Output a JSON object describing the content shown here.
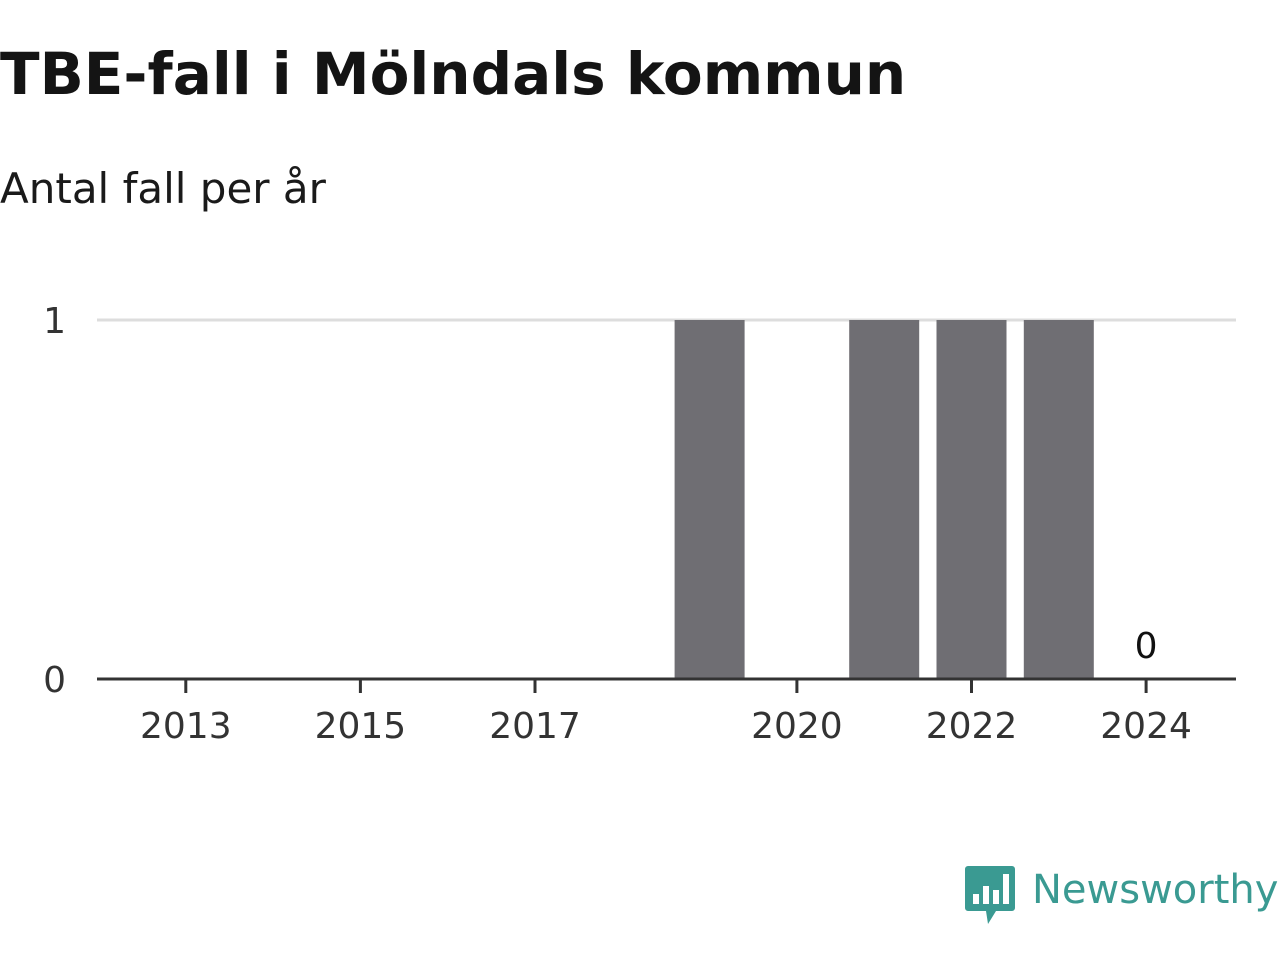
{
  "title": "TBE-fall i Mölndals kommun",
  "subtitle": "Antal fall per år",
  "brand": {
    "name": "Newsworthy",
    "icon": "newsworthy-logo-icon",
    "color": "#3a9a92"
  },
  "colors": {
    "bar": "#6f6e73",
    "gridline": "#dddddd",
    "axis": "#333333"
  },
  "chart_data": {
    "type": "bar",
    "categories": [
      "2012",
      "2013",
      "2014",
      "2015",
      "2016",
      "2017",
      "2018",
      "2019",
      "2020",
      "2021",
      "2022",
      "2023",
      "2024",
      "2025"
    ],
    "x_tick_labels": [
      "2013",
      "2015",
      "2017",
      "2020",
      "2022",
      "2024"
    ],
    "values": [
      0,
      0,
      0,
      0,
      0,
      0,
      0,
      1,
      0,
      1,
      1,
      1,
      0,
      0
    ],
    "data_labels": [
      {
        "category": "2024",
        "text": "0"
      }
    ],
    "y_tick_labels": [
      "0",
      "1"
    ],
    "ylim": [
      0,
      1
    ],
    "grid": true,
    "xlabel": "",
    "ylabel": ""
  }
}
